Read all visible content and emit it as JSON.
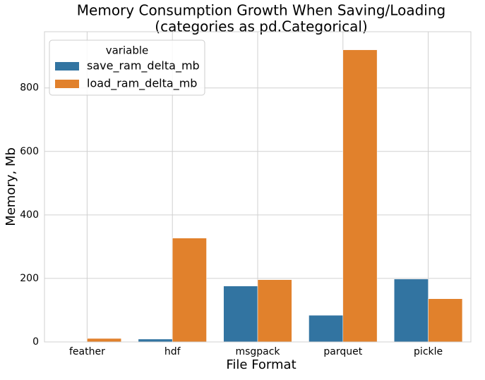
{
  "chart_data": {
    "type": "bar",
    "title": [
      "Memory Consumption Growth When Saving/Loading",
      "(categories as pd.Categorical)"
    ],
    "x_label": "File Format",
    "y_label": "Memory, Mb",
    "categories": [
      "feather",
      "hdf",
      "msgpack",
      "parquet",
      "pickle"
    ],
    "series": [
      {
        "name": "save_ram_delta_mb",
        "color": "#3274a1",
        "values": [
          0.5,
          9,
          176,
          84,
          198
        ]
      },
      {
        "name": "load_ram_delta_mb",
        "color": "#e1812c",
        "values": [
          11,
          327,
          196,
          920,
          136
        ]
      }
    ],
    "legend_title": "variable",
    "legend": "upper left",
    "ylim": [
      0,
      977
    ],
    "yticks": [
      0,
      200,
      400,
      600,
      800
    ],
    "grid": true
  }
}
